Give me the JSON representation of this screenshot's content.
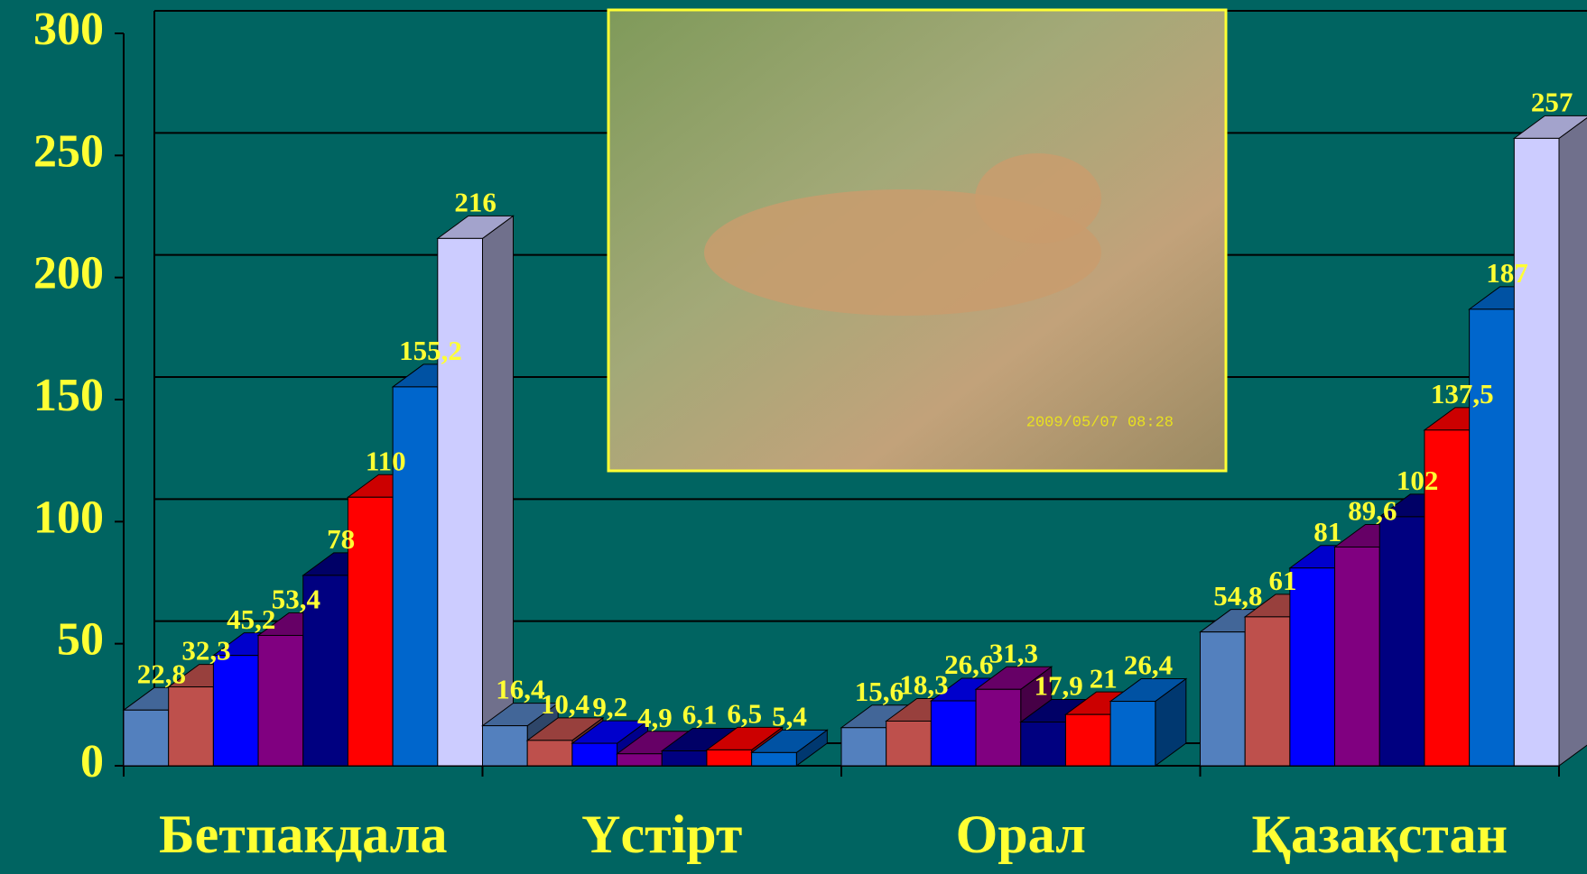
{
  "chart_data": {
    "type": "bar3d",
    "categories": [
      "Бетпакдала",
      "Үстірт",
      "Орал",
      "Қазақстан"
    ],
    "ylim": [
      0,
      300
    ],
    "yticks": [
      0,
      50,
      100,
      150,
      200,
      250,
      300
    ],
    "grid": true,
    "series": [
      {
        "color": "#5380BE",
        "values": [
          22.8,
          16.4,
          15.6,
          54.8
        ],
        "value_labels": [
          "22,8",
          "16,4",
          "15,6",
          "54,8"
        ]
      },
      {
        "color": "#BE504C",
        "values": [
          32.3,
          10.4,
          18.3,
          61
        ],
        "value_labels": [
          "32,3",
          "10,4",
          "18,3",
          "61"
        ]
      },
      {
        "color": "#0000FF",
        "values": [
          45.2,
          9.2,
          26.6,
          81
        ],
        "value_labels": [
          "45,2",
          "9,2",
          "26,6",
          "81"
        ]
      },
      {
        "color": "#800080",
        "values": [
          53.4,
          4.9,
          31.3,
          89.6
        ],
        "value_labels": [
          "53,4",
          "4,9",
          "31,3",
          "89,6"
        ]
      },
      {
        "color": "#000080",
        "values": [
          78,
          6.1,
          17.9,
          102
        ],
        "value_labels": [
          "78",
          "6,1",
          "17,9",
          "102"
        ]
      },
      {
        "color": "#FF0000",
        "values": [
          110,
          6.5,
          21,
          137.5
        ],
        "value_labels": [
          "110",
          "6,5",
          "21",
          "137,5"
        ]
      },
      {
        "color": "#0066CC",
        "values": [
          155.2,
          5.4,
          26.4,
          187
        ],
        "value_labels": [
          "155,2",
          "5,4",
          "26,4",
          "187"
        ]
      },
      {
        "color": "#CCCCFF",
        "values": [
          216,
          null,
          null,
          257
        ],
        "value_labels": [
          "216",
          null,
          null,
          "257"
        ]
      }
    ]
  },
  "photo_caption": "2009/05/07 08:28"
}
